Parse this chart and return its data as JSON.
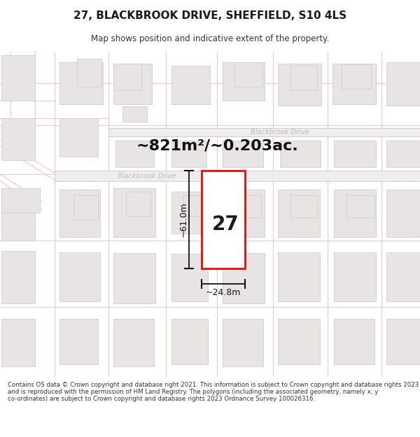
{
  "title_line1": "27, BLACKBROOK DRIVE, SHEFFIELD, S10 4LS",
  "title_line2": "Map shows position and indicative extent of the property.",
  "area_text": "~821m²/~0.203ac.",
  "road_label_upper": "Blackbrook Drive",
  "road_label_lower": "Blackbrook Drive",
  "property_number": "27",
  "dim_height": "~61.0m",
  "dim_width": "~24.8m",
  "footer_text": "Contains OS data © Crown copyright and database right 2021. This information is subject to Crown copyright and database rights 2023 and is reproduced with the permission of HM Land Registry. The polygons (including the associated geometry, namely x, y co-ordinates) are subject to Crown copyright and database rights 2023 Ordnance Survey 100026316.",
  "map_bg": "#faf9f9",
  "road_line_color": "#f0c8c8",
  "building_fill": "#e8e4e4",
  "building_edge": "#d4cccc",
  "highlight_color": "#ff0000",
  "road_band_fill": "#f0eded",
  "road_band_edge": "#d8cccc",
  "dim_color": "#111111",
  "area_fontsize": 16,
  "num_fontsize": 20,
  "dim_fontsize": 9,
  "road_label_color": "#bbbbbb"
}
